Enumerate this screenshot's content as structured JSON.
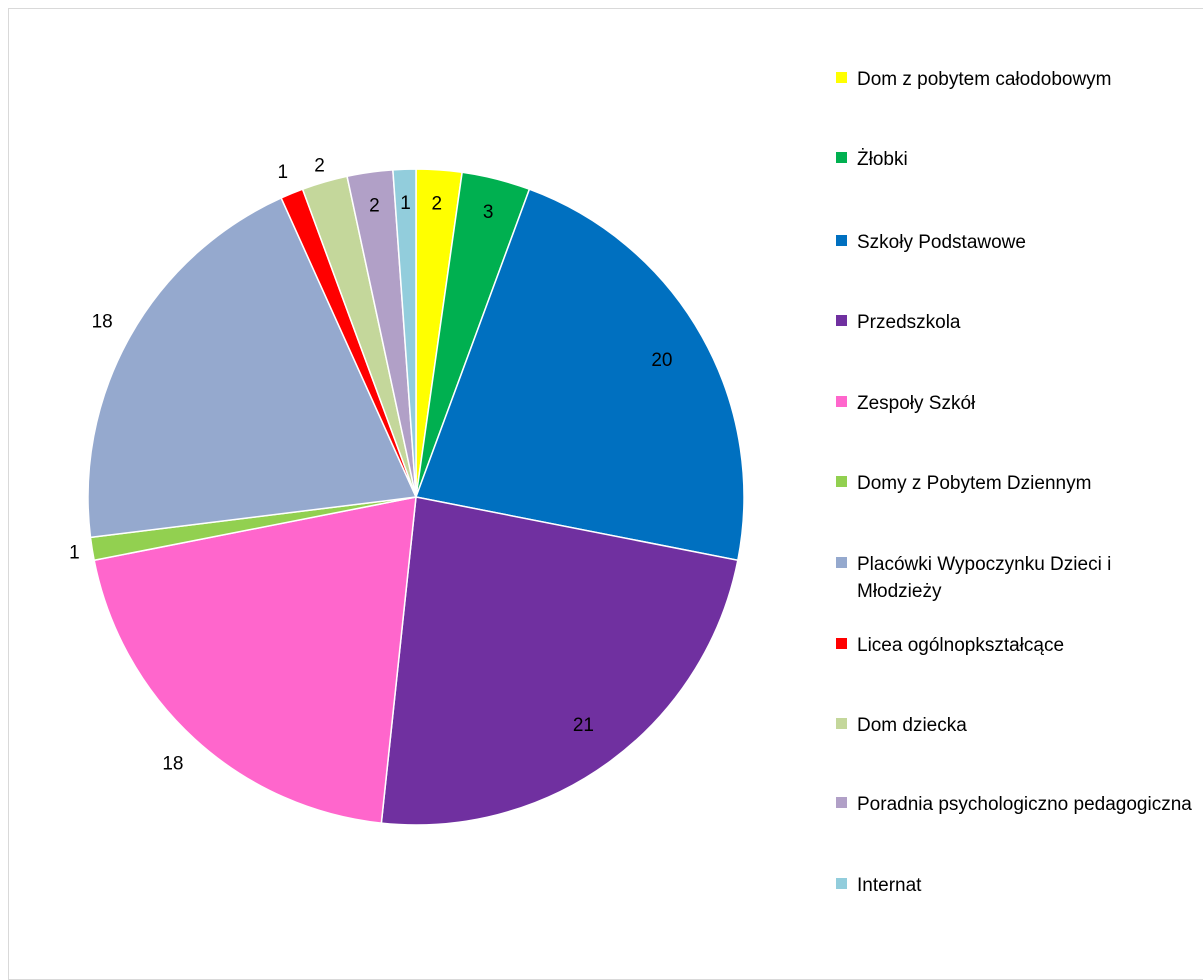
{
  "chart_data": {
    "type": "pie",
    "title": "",
    "start_angle": "top",
    "direction": "clockwise",
    "slices": [
      {
        "label": "Dom z pobytem całodobowym",
        "value": 2,
        "color": "#FFFF00"
      },
      {
        "label": "Żłobki",
        "value": 3,
        "color": "#00B050"
      },
      {
        "label": "Szkoły Podstawowe",
        "value": 20,
        "color": "#0070C0"
      },
      {
        "label": "Przedszkola",
        "value": 21,
        "color": "#7030A0"
      },
      {
        "label": "Zespoły Szkół",
        "value": 18,
        "color": "#FF66CC"
      },
      {
        "label": "Domy z Pobytem Dziennym",
        "value": 1,
        "color": "#92D050"
      },
      {
        "label": "Placówki Wypoczynku Dzieci i Młodzieży",
        "value": 18,
        "color": "#95A9CE"
      },
      {
        "label": "Licea ogólnopkształcące",
        "value": 1,
        "color": "#FF0000"
      },
      {
        "label": "Dom dziecka",
        "value": 2,
        "color": "#C4D79B"
      },
      {
        "label": "Poradnia psychologiczno pedagogiczna",
        "value": 2,
        "color": "#B1A0C7"
      },
      {
        "label": "Internat",
        "value": 1,
        "color": "#92CDDC"
      }
    ],
    "legend_position": "right",
    "data_labels": "values"
  }
}
